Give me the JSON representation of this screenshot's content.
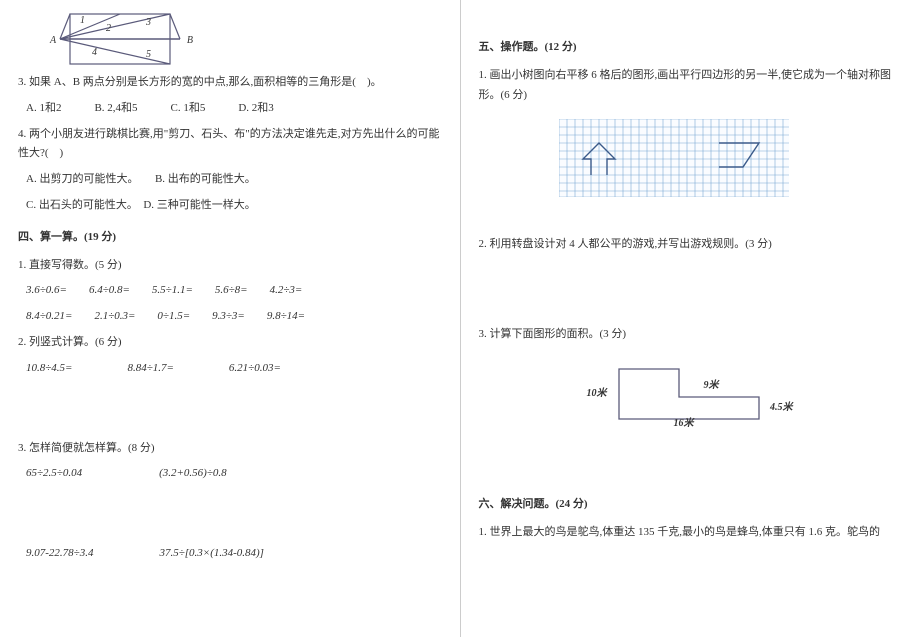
{
  "left": {
    "fig_labels": {
      "n1": "1",
      "n2": "2",
      "n3": "3",
      "n4": "4",
      "n5": "5",
      "A": "A",
      "B": "B"
    },
    "q3": "3. 如果 A、B 两点分别是长方形的宽的中点,那么,面积相等的三角形是(　)。",
    "q3_opts": "A. 1和2　　　B. 2,4和5　　　C. 1和5　　　D. 2和3",
    "q4": "4. 两个小朋友进行跳棋比赛,用\"剪刀、石头、布\"的方法决定谁先走,对方先出什么的可能性大?(　)",
    "q4_a": "A. 出剪刀的可能性大。　　B. 出布的可能性大。",
    "q4_b": "C. 出石头的可能性大。　D. 三种可能性一样大。",
    "s4_title": "四、算一算。(19 分)",
    "s4_1": "1. 直接写得数。(5 分)",
    "s4_1_row1": "3.6÷0.6=　　6.4÷0.8=　　5.5÷1.1=　　5.6÷8=　　4.2÷3=",
    "s4_1_row2": "8.4÷0.21=　　2.1÷0.3=　　0÷1.5=　　9.3÷3=　　9.8÷14=",
    "s4_2": "2. 列竖式计算。(6 分)",
    "s4_2_row": "10.8÷4.5=　　　　　8.84÷1.7=　　　　　6.21÷0.03=",
    "s4_3": "3. 怎样简便就怎样算。(8 分)",
    "s4_3_row1": "65÷2.5÷0.04　　　　　　　(3.2+0.56)÷0.8",
    "s4_3_row2": "9.07-22.78÷3.4　　　　　　37.5÷[0.3×(1.34-0.84)]"
  },
  "right": {
    "s5_title": "五、操作题。(12 分)",
    "s5_1": "1. 画出小树图向右平移 6 格后的图形,画出平行四边形的另一半,使它成为一个轴对称图形。(6 分)",
    "s5_2": "2. 利用转盘设计对 4 人都公平的游戏,并写出游戏规则。(3 分)",
    "s5_3": "3. 计算下面图形的面积。(3 分)",
    "trap": {
      "top": "9米",
      "left": "10米",
      "right": "4.5米",
      "bottom": "16米"
    },
    "s6_title": "六、解决问题。(24 分)",
    "s6_1": "1. 世界上最大的鸟是鸵鸟,体重达 135 千克,最小的鸟是蜂鸟,体重只有 1.6 克。鸵鸟的"
  },
  "style": {
    "grid_color": "#7aa8d4",
    "shape_stroke": "#3a5a8a",
    "line_color": "#5a5a7a"
  }
}
